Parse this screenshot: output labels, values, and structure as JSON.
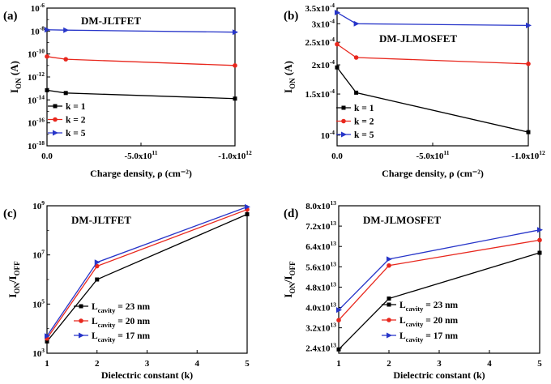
{
  "chart_data": [
    {
      "panel_label": "(a)",
      "type": "line",
      "title": "DM-JLTFET",
      "ylabel": "I_ON (A)",
      "xlabel": "Charge density, ρ (cm⁻²)",
      "yscale": "log",
      "ylim": [
        1e-18,
        1e-06
      ],
      "xlim": [
        0,
        -1000000000000.0
      ],
      "x_ticks": [
        0,
        -500000000000.0,
        -1000000000000.0
      ],
      "x_tick_labels": [
        "0.0",
        "-5.0x10^11",
        "-1.0x10^12"
      ],
      "y_tick_labels": [
        "10^-6",
        "10^-8",
        "10^-10",
        "10^-12",
        "10^-14",
        "10^-16",
        "10^-18"
      ],
      "x": [
        0,
        -100000000000.0,
        -1000000000000.0
      ],
      "series": [
        {
          "name": "k = 1",
          "color": "#000000",
          "marker": "square",
          "values": [
            7e-14,
            4e-14,
            1.3e-14
          ]
        },
        {
          "name": "k = 2",
          "color": "#e8271d",
          "marker": "circle",
          "values": [
            6e-11,
            3.5e-11,
            1e-11
          ]
        },
        {
          "name": "k = 5",
          "color": "#2735c9",
          "marker": "triangle",
          "values": [
            1.3e-08,
            1.2e-08,
            8e-09
          ]
        }
      ],
      "legend_position": "bottom-left"
    },
    {
      "panel_label": "(b)",
      "type": "line",
      "title": "DM-JLMOSFET",
      "ylabel": "I_ON (A)",
      "xlabel": "Charge density, ρ (cm⁻²)",
      "yscale": "log",
      "ylim": [
        9e-05,
        0.00035
      ],
      "xlim": [
        0,
        -1000000000000.0
      ],
      "x_ticks": [
        0,
        -500000000000.0,
        -1000000000000.0
      ],
      "x_tick_labels": [
        "0.0",
        "-5.0x10^11",
        "-1.0x10^12"
      ],
      "y_ticks": [
        0.0001,
        0.00015,
        0.0002,
        0.00025,
        0.0003,
        0.00035
      ],
      "y_tick_labels": [
        "10^-4",
        "1.5x10^-4",
        "2x10^-4",
        "2.5x10^-4",
        "3x10^-4",
        "3.5x10^-4"
      ],
      "x": [
        0,
        -100000000000.0,
        -1000000000000.0
      ],
      "series": [
        {
          "name": "k = 1",
          "color": "#000000",
          "marker": "square",
          "values": [
            0.000195,
            0.000152,
            0.000103
          ]
        },
        {
          "name": "k = 2",
          "color": "#e8271d",
          "marker": "circle",
          "values": [
            0.000245,
            0.000215,
            0.000202
          ]
        },
        {
          "name": "k = 5",
          "color": "#2735c9",
          "marker": "triangle",
          "values": [
            0.000335,
            0.0003,
            0.000295
          ]
        }
      ],
      "legend_position": "bottom-left"
    },
    {
      "panel_label": "(c)",
      "type": "line",
      "title": "DM-JLTFET",
      "ylabel": "I_ON/I_OFF",
      "xlabel": "Dielectric constant (k)",
      "yscale": "log",
      "ylim": [
        1000.0,
        1000000000.0
      ],
      "xlim": [
        1,
        5
      ],
      "x_ticks": [
        1,
        2,
        3,
        4,
        5
      ],
      "x_tick_labels": [
        "1",
        "2",
        "3",
        "4",
        "5"
      ],
      "y_tick_labels": [
        "10^9",
        "10^7",
        "10^5",
        "10^3"
      ],
      "x": [
        1,
        2,
        5
      ],
      "series": [
        {
          "name": "L_cavity = 23 nm",
          "color": "#000000",
          "marker": "square",
          "values": [
            3000.0,
            1000000.0,
            450000000.0
          ]
        },
        {
          "name": "L_cavity = 20 nm",
          "color": "#e8271d",
          "marker": "circle",
          "values": [
            4000.0,
            3500000.0,
            700000000.0
          ]
        },
        {
          "name": "L_cavity = 17 nm",
          "color": "#2735c9",
          "marker": "triangle",
          "values": [
            5000.0,
            5000000.0,
            900000000.0
          ]
        }
      ],
      "legend_position": "bottom-right"
    },
    {
      "panel_label": "(d)",
      "type": "line",
      "title": "DM-JLMOSFET",
      "ylabel": "I_ON/I_OFF",
      "xlabel": "Dielectric constant (k)",
      "yscale": "linear",
      "ylim": [
        22000000000000.0,
        80000000000000.0
      ],
      "xlim": [
        1,
        5
      ],
      "x_ticks": [
        1,
        2,
        3,
        4,
        5
      ],
      "x_tick_labels": [
        "1",
        "2",
        "3",
        "4",
        "5"
      ],
      "y_ticks": [
        24000000000000.0,
        32000000000000.0,
        40000000000000.0,
        48000000000000.0,
        56000000000000.0,
        64000000000000.0,
        72000000000000.0,
        80000000000000.0
      ],
      "y_tick_labels": [
        "2.4x10^13",
        "3.2x10^13",
        "4.0x10^13",
        "4.8x10^13",
        "5.6x10^13",
        "6.4x10^13",
        "7.2x10^13",
        "8.0x10^13"
      ],
      "x": [
        1,
        2,
        5
      ],
      "series": [
        {
          "name": "L_cavity = 23 nm",
          "color": "#000000",
          "marker": "square",
          "values": [
            23500000000000.0,
            43500000000000.0,
            61500000000000.0
          ]
        },
        {
          "name": "L_cavity = 20 nm",
          "color": "#e8271d",
          "marker": "circle",
          "values": [
            35000000000000.0,
            56500000000000.0,
            66500000000000.0
          ]
        },
        {
          "name": "L_cavity = 17 nm",
          "color": "#2735c9",
          "marker": "triangle",
          "values": [
            39000000000000.0,
            59000000000000.0,
            70500000000000.0
          ]
        }
      ],
      "legend_position": "bottom-right"
    }
  ]
}
